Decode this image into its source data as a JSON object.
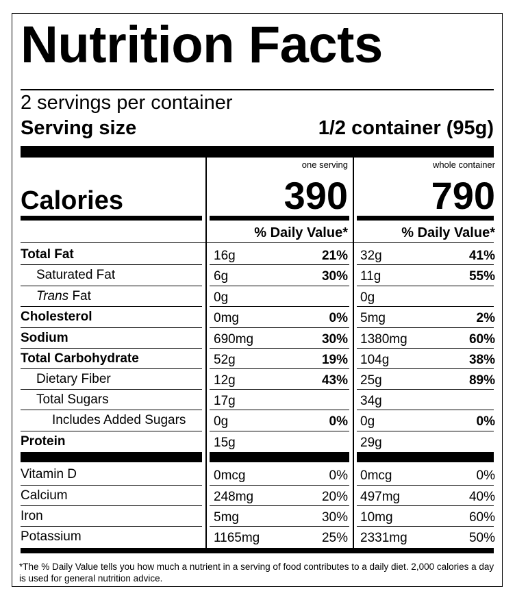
{
  "title": "Nutrition Facts",
  "servings_per_container": "2 servings per container",
  "serving_size": {
    "label": "Serving size",
    "value": "1/2 container (95g)"
  },
  "columns": [
    {
      "header": "one serving",
      "calories": "390",
      "dv_header": "% Daily Value*"
    },
    {
      "header": "whole container",
      "calories": "790",
      "dv_header": "% Daily Value*"
    }
  ],
  "calories_label": "Calories",
  "nutrients": [
    {
      "name": "Total Fat",
      "serving_amt": "16g",
      "serving_dv": "21%",
      "container_amt": "32g",
      "container_dv": "41%"
    },
    {
      "name": "Saturated Fat",
      "serving_amt": "6g",
      "serving_dv": "30%",
      "container_amt": "11g",
      "container_dv": "55%"
    },
    {
      "name_italic": "Trans",
      "name_rest": " Fat",
      "serving_amt": "0g",
      "serving_dv": "",
      "container_amt": "0g",
      "container_dv": ""
    },
    {
      "name": "Cholesterol",
      "serving_amt": "0mg",
      "serving_dv": "0%",
      "container_amt": "5mg",
      "container_dv": "2%"
    },
    {
      "name": "Sodium",
      "serving_amt": "690mg",
      "serving_dv": "30%",
      "container_amt": "1380mg",
      "container_dv": "60%"
    },
    {
      "name": "Total Carbohydrate",
      "serving_amt": "52g",
      "serving_dv": "19%",
      "container_amt": "104g",
      "container_dv": "38%"
    },
    {
      "name": "Dietary Fiber",
      "serving_amt": "12g",
      "serving_dv": "43%",
      "container_amt": "25g",
      "container_dv": "89%"
    },
    {
      "name": "Total Sugars",
      "serving_amt": "17g",
      "serving_dv": "",
      "container_amt": "34g",
      "container_dv": ""
    },
    {
      "name": "Includes Added Sugars",
      "serving_amt": "0g",
      "serving_dv": "0%",
      "container_amt": "0g",
      "container_dv": "0%"
    },
    {
      "name": "Protein",
      "serving_amt": "15g",
      "serving_dv": "",
      "container_amt": "29g",
      "container_dv": ""
    }
  ],
  "micronutrients": [
    {
      "name": "Vitamin D",
      "serving_amt": "0mcg",
      "serving_dv": "0%",
      "container_amt": "0mcg",
      "container_dv": "0%"
    },
    {
      "name": "Calcium",
      "serving_amt": "248mg",
      "serving_dv": "20%",
      "container_amt": "497mg",
      "container_dv": "40%"
    },
    {
      "name": "Iron",
      "serving_amt": "5mg",
      "serving_dv": "30%",
      "container_amt": "10mg",
      "container_dv": "60%"
    },
    {
      "name": "Potassium",
      "serving_amt": "1165mg",
      "serving_dv": "25%",
      "container_amt": "2331mg",
      "container_dv": "50%"
    }
  ],
  "footnote": "*The % Daily Value tells you how much a nutrient in a serving of food contributes to a daily diet. 2,000 calories a day is used for general nutrition advice."
}
